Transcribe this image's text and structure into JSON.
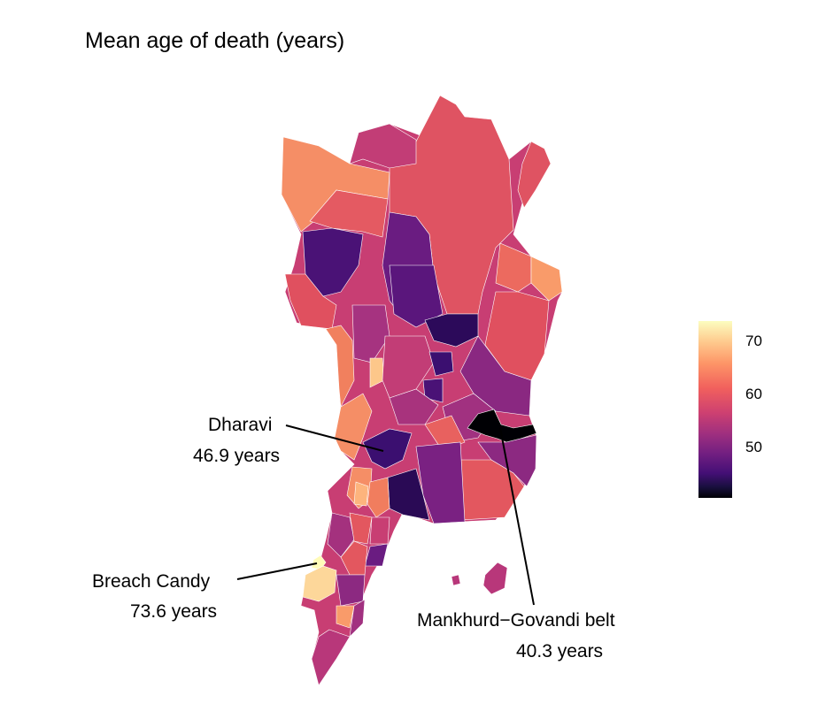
{
  "title": "Mean age of death (years)",
  "legend": {
    "ticks": [
      "70",
      "60",
      "50"
    ],
    "tick_values": [
      70,
      60,
      50
    ],
    "min": 40.3,
    "max": 73.6,
    "colormap": "magma"
  },
  "annotations": [
    {
      "name": "Dharavi",
      "value_label": "46.9 years",
      "value": 46.9
    },
    {
      "name": "Breach Candy",
      "value_label": "73.6 years",
      "value": 73.6
    },
    {
      "name": "Mankhurd−Govandi belt",
      "value_label": "40.3 years",
      "value": 40.3
    }
  ],
  "colors": {
    "orange": "#f58e66",
    "coral": "#e6585f",
    "red": "#df5362",
    "magenta": "#b8377a",
    "purple": "#8c2981",
    "deep_purple": "#5a167c",
    "indigo": "#3b0f70",
    "black": "#000004",
    "pale": "#fdd79a"
  }
}
